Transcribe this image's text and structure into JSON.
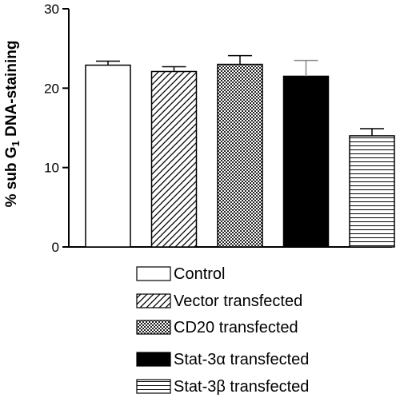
{
  "chart_data": {
    "type": "bar",
    "title": "",
    "ylabel": {
      "prefix": "% sub G",
      "subscript": "1",
      "suffix": " DNA-staining"
    },
    "ylim": [
      0,
      30
    ],
    "yticks": [
      "0",
      "10",
      "20",
      "30"
    ],
    "categories": [
      "Control",
      "Vector transfected",
      "CD20 transfected",
      "Stat-3α transfected",
      "Stat-3β transfected"
    ],
    "values": [
      22.9,
      22.1,
      23.0,
      21.5,
      14.0
    ],
    "errors": [
      0.5,
      0.6,
      1.1,
      2.0,
      0.9
    ],
    "patterns": [
      "white",
      "diagonal",
      "checker",
      "black",
      "horizontal"
    ],
    "grid": false,
    "legend": "bottom"
  }
}
